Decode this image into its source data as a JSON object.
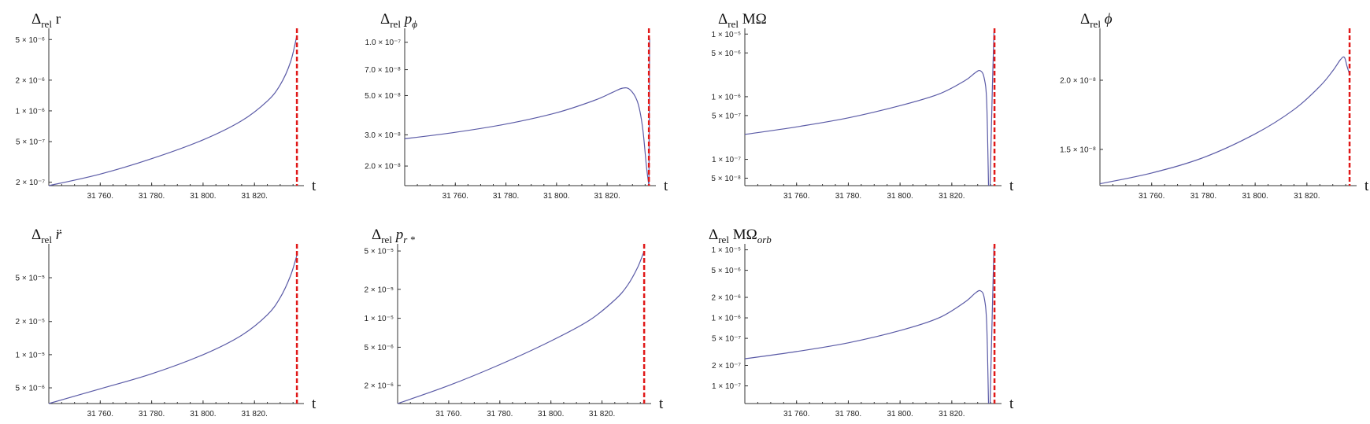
{
  "chart_data": [
    {
      "id": "r",
      "type": "line",
      "title": "Δrel r",
      "title_parts": {
        "base": "Δ",
        "sub": "rel",
        "rest": " r",
        "italic": false
      },
      "xlabel": "t",
      "y_scale": "log",
      "xlim": [
        31740,
        31838
      ],
      "ylim": [
        1.85e-07,
        6e-06
      ],
      "x_ticks": [
        31760,
        31780,
        31800,
        31820
      ],
      "x_tick_labels": [
        "31 760.",
        "31 780.",
        "31 800.",
        "31 820."
      ],
      "y_ticks": [
        2e-07,
        5e-07,
        1e-06,
        2e-06,
        5e-06
      ],
      "y_tick_labels": [
        "2 × 10⁻⁷",
        "5 × 10⁻⁷",
        "1 × 10⁻⁶",
        "2 × 10⁻⁶",
        "5 × 10⁻⁶"
      ],
      "marker_x": 31836.5,
      "series": [
        {
          "x": [
            31740,
            31760,
            31780,
            31800,
            31815,
            31825,
            31830,
            31834,
            31836.5
          ],
          "y": [
            1.85e-07,
            2.4e-07,
            3.4e-07,
            5.2e-07,
            8e-07,
            1.25e-06,
            1.8e-06,
            3e-06,
            5.5e-06
          ]
        }
      ]
    },
    {
      "id": "pphi",
      "type": "line",
      "title": "Δrel pϕ",
      "title_parts": {
        "base": "Δ",
        "sub": "rel",
        "rest": " p",
        "rest_sub": "ϕ",
        "italic": true
      },
      "xlabel": "t",
      "y_scale": "log",
      "xlim": [
        31740,
        31838
      ],
      "ylim": [
        1.55e-08,
        1.15e-07
      ],
      "x_ticks": [
        31760,
        31780,
        31800,
        31820
      ],
      "x_tick_labels": [
        "31 760.",
        "31 780.",
        "31 800.",
        "31 820."
      ],
      "y_ticks": [
        2e-08,
        3e-08,
        5e-08,
        7e-08,
        1e-07
      ],
      "y_tick_labels": [
        "2.0 × 10⁻⁸",
        "3.0 × 10⁻⁸",
        "5.0 × 10⁻⁸",
        "7.0 × 10⁻⁸",
        "1.0 × 10⁻⁷"
      ],
      "marker_x": 31836.5,
      "series": [
        {
          "x": [
            31740,
            31760,
            31780,
            31800,
            31815,
            31822,
            31826,
            31829,
            31832,
            31834,
            31835.5,
            31836.5
          ],
          "y": [
            2.85e-08,
            3.1e-08,
            3.45e-08,
            4e-08,
            4.7e-08,
            5.2e-08,
            5.5e-08,
            5.4e-08,
            4.6e-08,
            3.3e-08,
            2e-08,
            1.55e-08
          ]
        },
        {
          "x": [
            31836.5,
            31836.8
          ],
          "y": [
            1.55e-08,
            1.05e-07
          ]
        }
      ]
    },
    {
      "id": "momega",
      "type": "line",
      "title": "Δrel MΩ",
      "title_parts": {
        "base": "Δ",
        "sub": "rel",
        "rest": " MΩ",
        "italic": false
      },
      "xlabel": "t",
      "y_scale": "log",
      "xlim": [
        31740,
        31838
      ],
      "ylim": [
        3.8e-08,
        1.1e-05
      ],
      "x_ticks": [
        31760,
        31780,
        31800,
        31820
      ],
      "x_tick_labels": [
        "31 760.",
        "31 780.",
        "31 800.",
        "31 820."
      ],
      "y_ticks": [
        5e-08,
        1e-07,
        5e-07,
        1e-06,
        5e-06,
        1e-05
      ],
      "y_tick_labels": [
        "5 × 10⁻⁸",
        "1 × 10⁻⁷",
        "5 × 10⁻⁷",
        "1 × 10⁻⁶",
        "5 × 10⁻⁶",
        "1 × 10⁻⁵"
      ],
      "marker_x": 31836.5,
      "series": [
        {
          "x": [
            31740,
            31760,
            31780,
            31800,
            31815,
            31825,
            31829,
            31831,
            31832.5,
            31833.5,
            31834.2
          ],
          "y": [
            2.5e-07,
            3.3e-07,
            4.6e-07,
            7.2e-07,
            1.1e-06,
            1.8e-06,
            2.4e-06,
            2.6e-06,
            2e-06,
            8e-07,
            3.8e-08
          ]
        },
        {
          "x": [
            31834.8,
            31835.6,
            31836.3
          ],
          "y": [
            3.8e-08,
            1e-06,
            1.1e-05
          ]
        }
      ]
    },
    {
      "id": "phi",
      "type": "line",
      "title": "Δrel ϕ",
      "title_parts": {
        "base": "Δ",
        "sub": "rel",
        "rest": " ϕ",
        "italic": true
      },
      "xlabel": "t",
      "y_scale": "log",
      "xlim": [
        31740,
        31838
      ],
      "ylim": [
        1.29e-08,
        2.45e-08
      ],
      "x_ticks": [
        31760,
        31780,
        31800,
        31820
      ],
      "x_tick_labels": [
        "31 760.",
        "31 780.",
        "31 800.",
        "31 820."
      ],
      "y_ticks": [
        1.5e-08,
        2e-08
      ],
      "y_tick_labels": [
        "1.5 × 10⁻⁸",
        "2.0 × 10⁻⁸"
      ],
      "marker_x": 31836.5,
      "series": [
        {
          "x": [
            31740,
            31760,
            31780,
            31800,
            31815,
            31825,
            31830,
            31833,
            31834.5,
            31835.5,
            31836.5
          ],
          "y": [
            1.3e-08,
            1.36e-08,
            1.45e-08,
            1.6e-08,
            1.77e-08,
            1.95e-08,
            2.08e-08,
            2.18e-08,
            2.2e-08,
            2.12e-08,
            2.05e-08
          ]
        }
      ]
    },
    {
      "id": "rddot",
      "type": "line",
      "title": "Δrel r̈",
      "title_parts": {
        "base": "Δ",
        "sub": "rel",
        "rest": " r̈",
        "italic": true
      },
      "xlabel": "t",
      "y_scale": "log",
      "xlim": [
        31740,
        31838
      ],
      "ylim": [
        3.6e-06,
        9.5e-05
      ],
      "x_ticks": [
        31760,
        31780,
        31800,
        31820
      ],
      "x_tick_labels": [
        "31 760.",
        "31 780.",
        "31 800.",
        "31 820."
      ],
      "y_ticks": [
        5e-06,
        1e-05,
        2e-05,
        5e-05
      ],
      "y_tick_labels": [
        "5 × 10⁻⁶",
        "1 × 10⁻⁵",
        "2 × 10⁻⁵",
        "5 × 10⁻⁵"
      ],
      "marker_x": 31836.5,
      "series": [
        {
          "x": [
            31740,
            31760,
            31780,
            31800,
            31815,
            31825,
            31830,
            31834,
            31836.5
          ],
          "y": [
            3.6e-06,
            4.9e-06,
            6.7e-06,
            1e-05,
            1.5e-05,
            2.3e-05,
            3.3e-05,
            5.2e-05,
            8e-05
          ]
        }
      ]
    },
    {
      "id": "prstar",
      "type": "line",
      "title": "Δrel pr*",
      "title_parts": {
        "base": "Δ",
        "sub": "rel",
        "rest": " p",
        "rest_sub": "r *",
        "italic": true
      },
      "xlabel": "t",
      "y_scale": "log",
      "xlim": [
        31740,
        31838
      ],
      "ylim": [
        1.3e-06,
        5.5e-05
      ],
      "x_ticks": [
        31760,
        31780,
        31800,
        31820
      ],
      "x_tick_labels": [
        "31 760.",
        "31 780.",
        "31 800.",
        "31 820."
      ],
      "y_ticks": [
        2e-06,
        5e-06,
        1e-05,
        2e-05,
        5e-05
      ],
      "y_tick_labels": [
        "2 × 10⁻⁶",
        "5 × 10⁻⁶",
        "1 × 10⁻⁵",
        "2 × 10⁻⁵",
        "5 × 10⁻⁵"
      ],
      "marker_x": 31836.5,
      "series": [
        {
          "x": [
            31740,
            31760,
            31780,
            31800,
            31815,
            31825,
            31830,
            31834,
            31836.5
          ],
          "y": [
            1.3e-06,
            2e-06,
            3.3e-06,
            5.8e-06,
            9.5e-06,
            1.55e-05,
            2.2e-05,
            3.4e-05,
            5e-05
          ]
        }
      ]
    },
    {
      "id": "momegaorb",
      "type": "line",
      "title": "Δrel MΩorb",
      "title_parts": {
        "base": "Δ",
        "sub": "rel",
        "rest": " MΩ",
        "rest_sub": "orb",
        "italic": false
      },
      "xlabel": "t",
      "y_scale": "log",
      "xlim": [
        31740,
        31838
      ],
      "ylim": [
        5.5e-08,
        1.1e-05
      ],
      "x_ticks": [
        31760,
        31780,
        31800,
        31820
      ],
      "x_tick_labels": [
        "31 760.",
        "31 780.",
        "31 800.",
        "31 820."
      ],
      "y_ticks": [
        1e-07,
        2e-07,
        5e-07,
        1e-06,
        2e-06,
        5e-06,
        1e-05
      ],
      "y_tick_labels": [
        "1 × 10⁻⁷",
        "2 × 10⁻⁷",
        "5 × 10⁻⁷",
        "1 × 10⁻⁶",
        "2 × 10⁻⁶",
        "5 × 10⁻⁶",
        "1 × 10⁻⁵"
      ],
      "marker_x": 31836.5,
      "series": [
        {
          "x": [
            31740,
            31760,
            31780,
            31800,
            31815,
            31825,
            31829,
            31831,
            31832.5,
            31833.5,
            31834.2
          ],
          "y": [
            2.5e-07,
            3.2e-07,
            4.3e-07,
            6.5e-07,
            1e-06,
            1.7e-06,
            2.3e-06,
            2.5e-06,
            2e-06,
            8e-07,
            5.5e-08
          ]
        },
        {
          "x": [
            31834.8,
            31835.6,
            31836.3
          ],
          "y": [
            5.5e-08,
            1e-06,
            1.1e-05
          ]
        }
      ]
    }
  ]
}
